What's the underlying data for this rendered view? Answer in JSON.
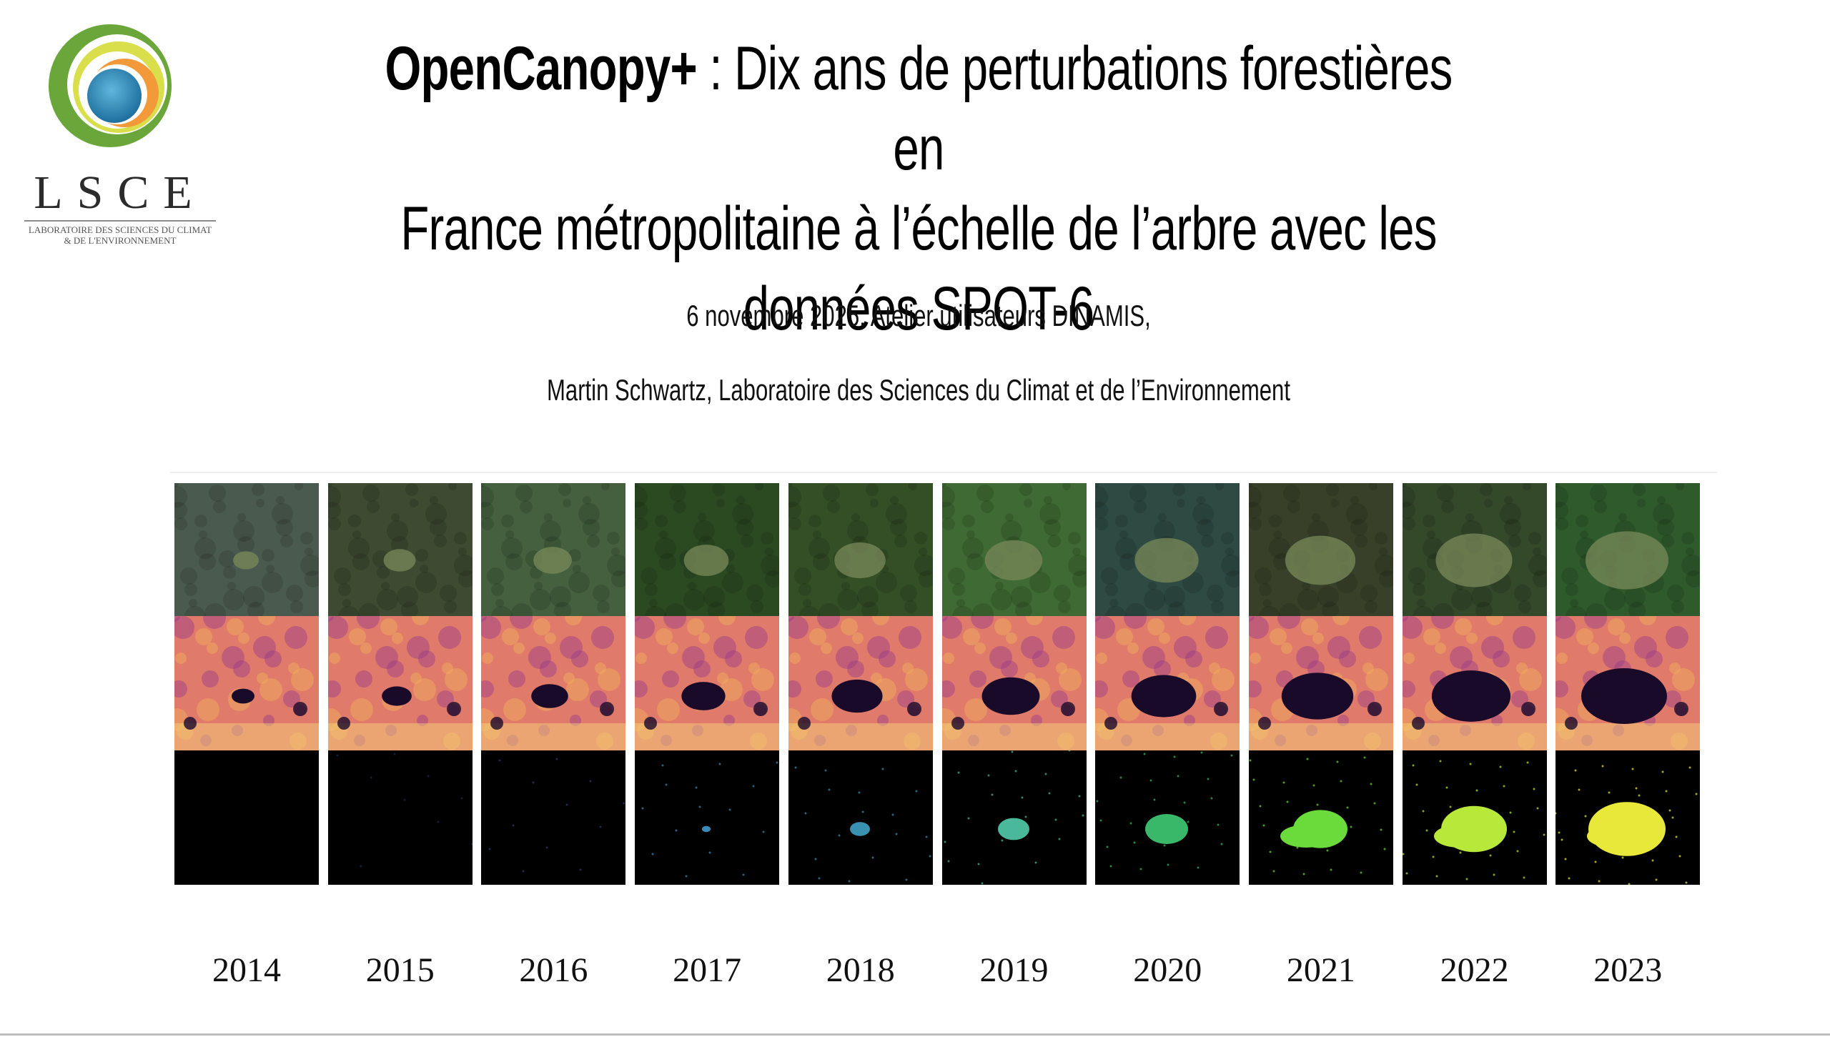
{
  "logo": {
    "icon": "lsce-rings-icon",
    "acronym": "LSCE",
    "subtitle_line1": "Laboratoire des Sciences du Climat",
    "subtitle_line2": "& de l'Environnement"
  },
  "title": {
    "bold": "OpenCanopy+",
    "line1_rest": " : Dix ans de perturbations forestières en",
    "line2": "France métropolitaine à l’échelle de l’arbre avec les",
    "line3": "données SPOT-6"
  },
  "subtitle": "6 novembre 2025, Atelier utilisateurs DINAMIS,",
  "author": "Martin Schwartz, Laboratoire des Sciences du Climat et de l’Environnement",
  "figure": {
    "rows": [
      "satellite-image",
      "canopy-height-map",
      "disturbance-map"
    ],
    "years": [
      "2014",
      "2015",
      "2016",
      "2017",
      "2018",
      "2019",
      "2020",
      "2021",
      "2022",
      "2023"
    ],
    "colors": {
      "forest": [
        "#4a5a4e",
        "#3e4a32",
        "#44603e",
        "#2b4a22",
        "#344f26",
        "#3f6a33",
        "#2e4a42",
        "#38402a",
        "#34482a",
        "#2f5a2c"
      ],
      "height_base": "#e07a6a",
      "height_dark": "#1a0a2a",
      "disturbance": [
        "#000000",
        "#1a2a4a",
        "#2a3a6a",
        "#3a8ab8",
        "#3a90b0",
        "#4ab89a",
        "#3ab86a",
        "#6adb3a",
        "#b8e83a",
        "#e8e83a"
      ]
    }
  }
}
